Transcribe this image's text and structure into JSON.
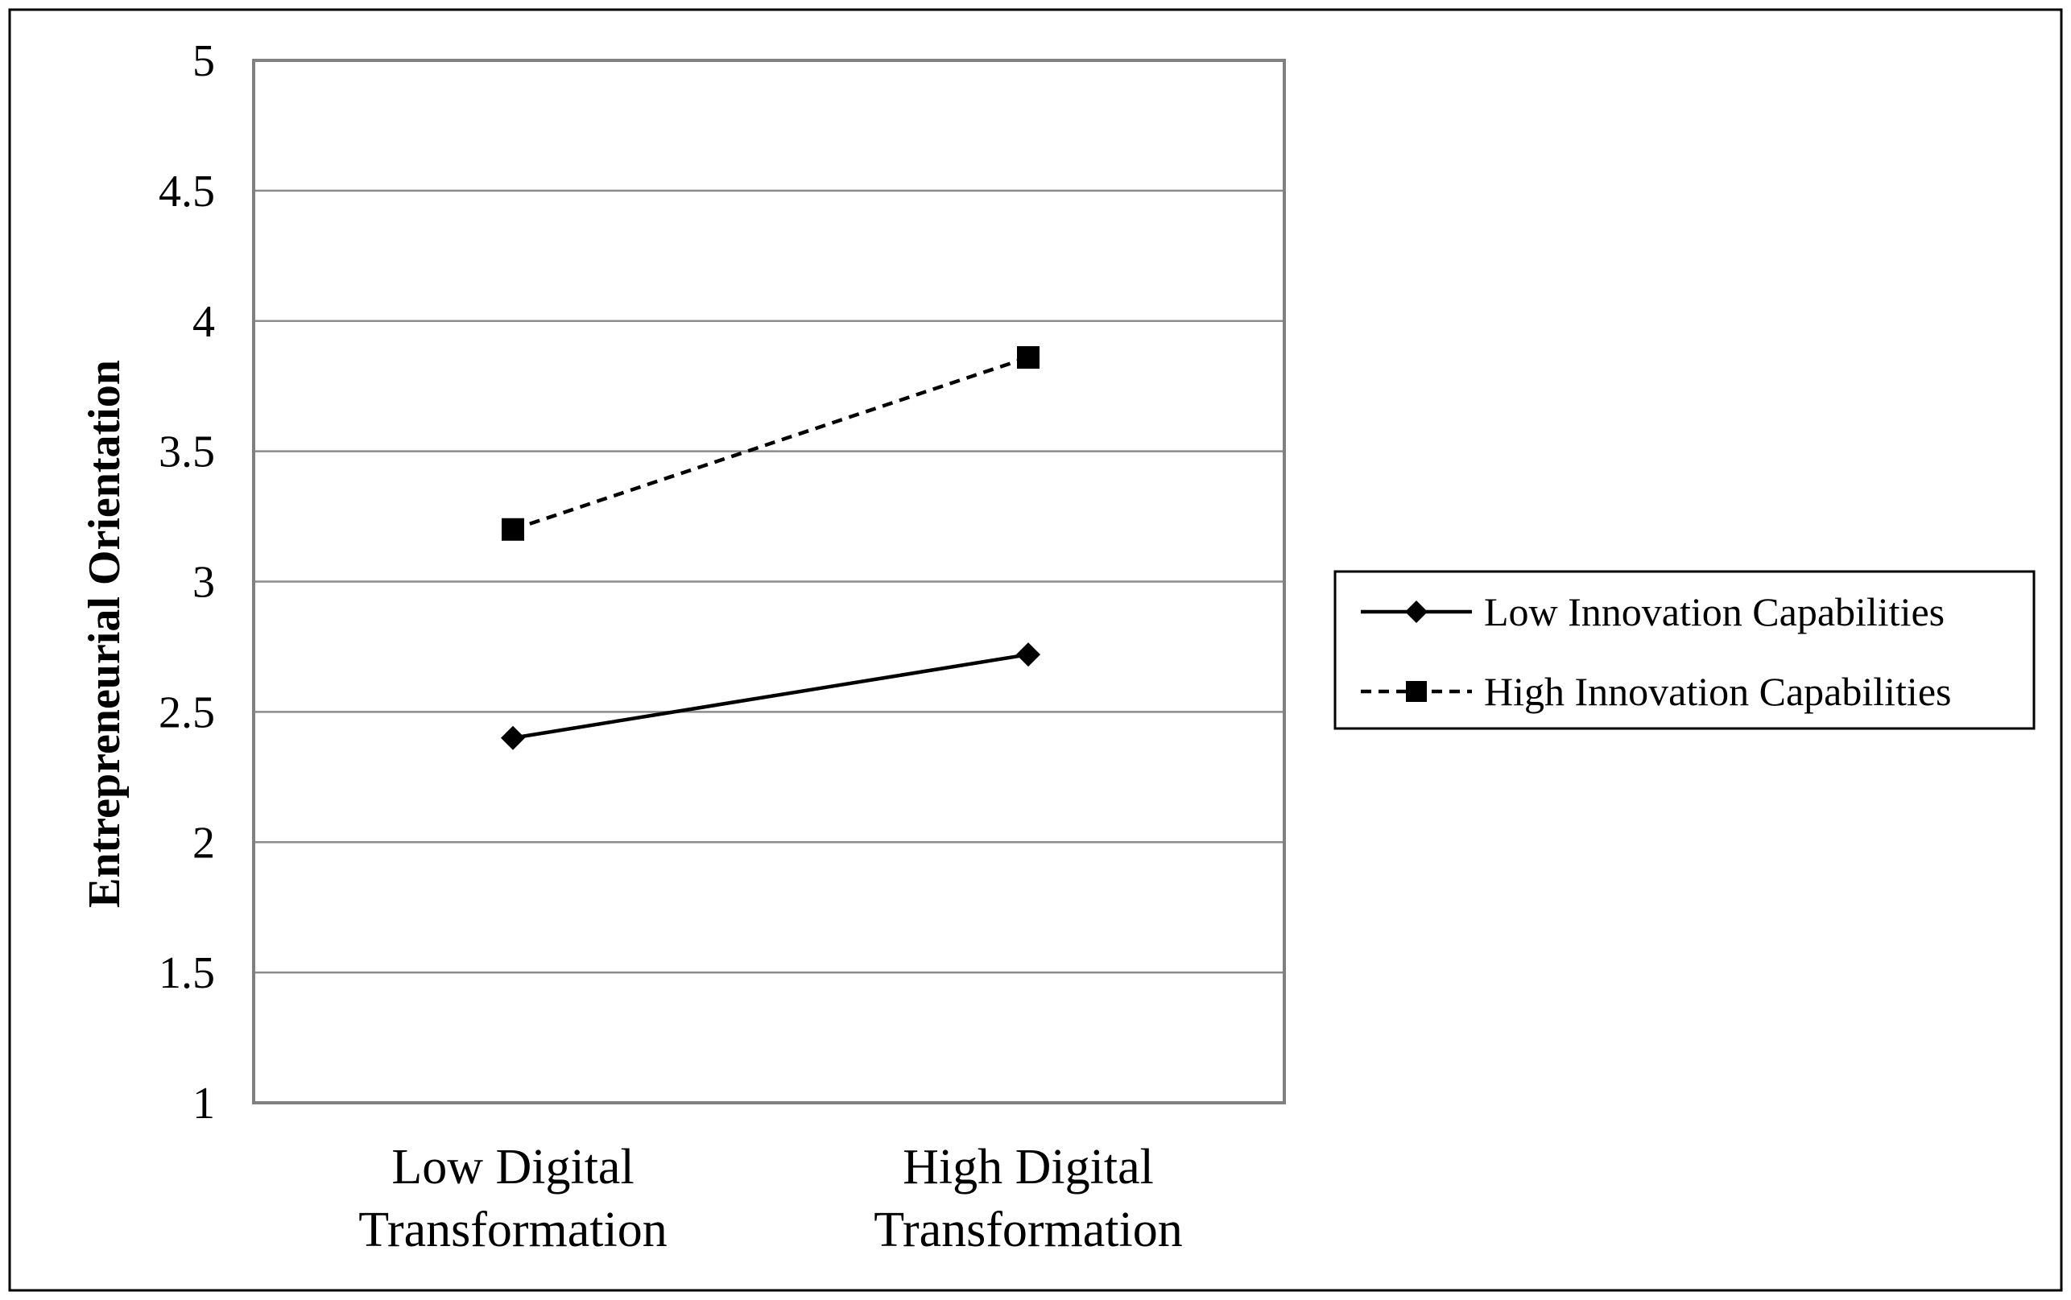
{
  "chart_data": {
    "type": "line",
    "categories": [
      [
        "Low Digital",
        "Transformation"
      ],
      [
        "High Digital",
        "Transformation"
      ]
    ],
    "ylabel": "Entrepreneurial Orientation",
    "xlabel": "",
    "title": "",
    "ylim": [
      1,
      5
    ],
    "yticks": [
      1,
      1.5,
      2,
      2.5,
      3,
      3.5,
      4,
      4.5,
      5
    ],
    "grid": true,
    "legend_position": "right",
    "series": [
      {
        "name": "Low Innovation Capabilities",
        "values": [
          2.4,
          2.72
        ],
        "line_style": "solid",
        "marker": "diamond",
        "color": "#000000"
      },
      {
        "name": "High Innovation Capabilities",
        "values": [
          3.2,
          3.86
        ],
        "line_style": "dashed",
        "marker": "square",
        "color": "#000000"
      }
    ]
  }
}
